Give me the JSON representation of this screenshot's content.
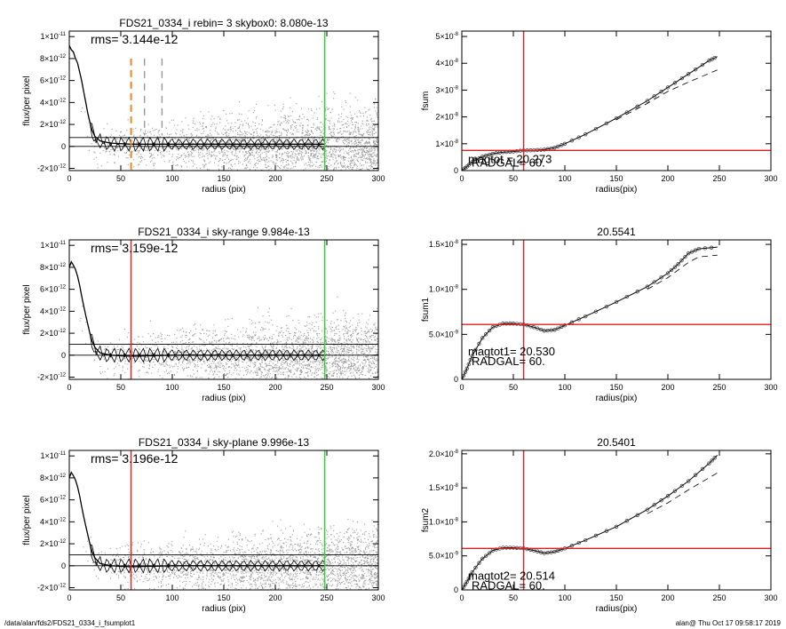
{
  "footer": {
    "path": "/data/alan/fds2/FDS21_0334_i_fsumplot1",
    "stamp": "alan@  Thu Oct 17 09:58:17 2019"
  },
  "colors": {
    "red": "#e02020",
    "green": "#22dd22",
    "orange": "#e08a2a",
    "scatter": "#9a9a9a"
  },
  "chart_data": [
    {
      "type": "scatter",
      "title": "FDS21_0334_i rebin= 3    skybox0:  8.080e-13",
      "xlabel": "radius (pix)",
      "ylabel": "flux/per pixel",
      "xlim": [
        0,
        300
      ],
      "ylim": [
        -2.2e-12,
        1.05e-11
      ],
      "xticks": [
        0,
        50,
        100,
        150,
        200,
        250,
        300
      ],
      "yticks": [
        {
          "v": -2e-12,
          "m": "-2",
          "e": "-12"
        },
        {
          "v": 0,
          "m": "0",
          "e": ""
        },
        {
          "v": 2e-12,
          "m": "2",
          "e": "-12"
        },
        {
          "v": 4e-12,
          "m": "4",
          "e": "-12"
        },
        {
          "v": 6e-12,
          "m": "6",
          "e": "-12"
        },
        {
          "v": 8e-12,
          "m": "8",
          "e": "-12"
        },
        {
          "v": 1e-11,
          "m": "1",
          "e": "-11"
        }
      ],
      "rms_label": "rms= 3.144e-12",
      "hlines": [
        0,
        8.08e-13
      ],
      "vlines": [
        {
          "x": 60,
          "color": "orange",
          "style": "dash-heavy"
        },
        {
          "x": 73,
          "color": "gray",
          "style": "dash"
        },
        {
          "x": 90,
          "color": "gray",
          "style": "dash"
        },
        {
          "x": 248,
          "color": "green",
          "style": "solid"
        }
      ],
      "profile": [
        [
          0,
          9.2e-12
        ],
        [
          2,
          8.8e-12
        ],
        [
          4,
          8.6e-12
        ],
        [
          6,
          8e-12
        ],
        [
          8,
          7.6e-12
        ],
        [
          10,
          6.8e-12
        ],
        [
          12,
          6e-12
        ],
        [
          14,
          5e-12
        ],
        [
          16,
          4e-12
        ],
        [
          18,
          3e-12
        ],
        [
          20,
          2.2e-12
        ],
        [
          22,
          1.5e-12
        ],
        [
          25,
          9e-13
        ],
        [
          30,
          5e-13
        ],
        [
          40,
          3e-13
        ],
        [
          60,
          2e-13
        ],
        [
          100,
          2e-13
        ],
        [
          150,
          2e-13
        ],
        [
          200,
          2e-13
        ],
        [
          248,
          2e-13
        ]
      ]
    },
    {
      "type": "line",
      "title": "",
      "xlabel": "radius(pix)",
      "ylabel": "fsum",
      "xlim": [
        0,
        300
      ],
      "ylim": [
        0,
        5.2e-08
      ],
      "xticks": [
        0,
        50,
        100,
        150,
        200,
        250,
        300
      ],
      "yticks": [
        {
          "v": 0,
          "m": "0",
          "e": ""
        },
        {
          "v": 1e-08,
          "m": "1×10",
          "e": "-8"
        },
        {
          "v": 2e-08,
          "m": "2×10",
          "e": "-8"
        },
        {
          "v": 3e-08,
          "m": "3×10",
          "e": "-8"
        },
        {
          "v": 4e-08,
          "m": "4×10",
          "e": "-8"
        },
        {
          "v": 5e-08,
          "m": "5×10",
          "e": "-8"
        }
      ],
      "vline": 60,
      "hline": 7.5e-09,
      "annotations": [
        "magtot =  20.273",
        "RADGAL=     60."
      ],
      "curve": [
        [
          0,
          0
        ],
        [
          5,
          1.5e-09
        ],
        [
          10,
          3.2e-09
        ],
        [
          20,
          5.2e-09
        ],
        [
          30,
          6.3e-09
        ],
        [
          40,
          6.9e-09
        ],
        [
          50,
          7.1e-09
        ],
        [
          60,
          7.5e-09
        ],
        [
          70,
          7.6e-09
        ],
        [
          80,
          7.8e-09
        ],
        [
          90,
          8.5e-09
        ],
        [
          100,
          1e-08
        ],
        [
          120,
          1.35e-08
        ],
        [
          150,
          1.95e-08
        ],
        [
          180,
          2.6e-08
        ],
        [
          200,
          3.1e-08
        ],
        [
          220,
          3.6e-08
        ],
        [
          240,
          4.1e-08
        ],
        [
          248,
          4.25e-08
        ]
      ],
      "dashed": [
        [
          150,
          1.9e-08
        ],
        [
          180,
          2.5e-08
        ],
        [
          200,
          2.95e-08
        ],
        [
          220,
          3.3e-08
        ],
        [
          248,
          3.75e-08
        ]
      ]
    },
    {
      "type": "scatter",
      "title": "FDS21_0334_i sky-range  9.984e-13",
      "xlabel": "radius (pix)",
      "ylabel": "flux/per pixel",
      "xlim": [
        0,
        300
      ],
      "ylim": [
        -2.2e-12,
        1.05e-11
      ],
      "xticks": [
        0,
        50,
        100,
        150,
        200,
        250,
        300
      ],
      "yticks": [
        {
          "v": -2e-12,
          "m": "-2",
          "e": "-12"
        },
        {
          "v": 0,
          "m": "0",
          "e": ""
        },
        {
          "v": 2e-12,
          "m": "2",
          "e": "-12"
        },
        {
          "v": 4e-12,
          "m": "4",
          "e": "-12"
        },
        {
          "v": 6e-12,
          "m": "6",
          "e": "-12"
        },
        {
          "v": 8e-12,
          "m": "8",
          "e": "-12"
        },
        {
          "v": 1e-11,
          "m": "1",
          "e": "-11"
        }
      ],
      "rms_label": "rms= 3.159e-12",
      "hlines": [
        0,
        9.984e-13
      ],
      "vlines": [
        {
          "x": 60,
          "color": "red",
          "style": "solid"
        },
        {
          "x": 248,
          "color": "green",
          "style": "solid"
        }
      ],
      "profile": [
        [
          0,
          8e-12
        ],
        [
          2,
          8.5e-12
        ],
        [
          4,
          8.2e-12
        ],
        [
          6,
          7.8e-12
        ],
        [
          8,
          7.2e-12
        ],
        [
          10,
          6.4e-12
        ],
        [
          12,
          5.4e-12
        ],
        [
          14,
          4.5e-12
        ],
        [
          16,
          3.6e-12
        ],
        [
          18,
          2.8e-12
        ],
        [
          20,
          2e-12
        ],
        [
          22,
          1.3e-12
        ],
        [
          25,
          7e-13
        ],
        [
          30,
          2e-13
        ],
        [
          40,
          0
        ],
        [
          60,
          -1e-13
        ],
        [
          100,
          0
        ],
        [
          150,
          0
        ],
        [
          200,
          0
        ],
        [
          248,
          0
        ]
      ]
    },
    {
      "type": "line",
      "title": "20.5541",
      "xlabel": "radius(pix)",
      "ylabel": "fsum1",
      "xlim": [
        0,
        300
      ],
      "ylim": [
        0,
        1.55e-08
      ],
      "xticks": [
        0,
        50,
        100,
        150,
        200,
        250,
        300
      ],
      "yticks": [
        {
          "v": 0,
          "m": "0",
          "e": ""
        },
        {
          "v": 5e-09,
          "m": "5.0×10",
          "e": "-9"
        },
        {
          "v": 1e-08,
          "m": "1.0×10",
          "e": "-8"
        },
        {
          "v": 1.5e-08,
          "m": "1.5×10",
          "e": "-8"
        }
      ],
      "vline": 60,
      "hline": 6.1e-09,
      "annotations": [
        "magtot1=  20.530",
        "RADGAL=     60."
      ],
      "curve": [
        [
          0,
          0
        ],
        [
          5,
          1.2e-09
        ],
        [
          10,
          2.6e-09
        ],
        [
          20,
          4.6e-09
        ],
        [
          30,
          5.8e-09
        ],
        [
          40,
          6.2e-09
        ],
        [
          50,
          6.2e-09
        ],
        [
          60,
          6.1e-09
        ],
        [
          70,
          5.8e-09
        ],
        [
          80,
          5.4e-09
        ],
        [
          90,
          5.5e-09
        ],
        [
          100,
          6e-09
        ],
        [
          120,
          7e-09
        ],
        [
          150,
          8.6e-09
        ],
        [
          180,
          1.03e-08
        ],
        [
          200,
          1.18e-08
        ],
        [
          210,
          1.28e-08
        ],
        [
          220,
          1.4e-08
        ],
        [
          230,
          1.45e-08
        ],
        [
          248,
          1.47e-08
        ]
      ],
      "dashed": [
        [
          180,
          1e-08
        ],
        [
          200,
          1.13e-08
        ],
        [
          220,
          1.3e-08
        ],
        [
          230,
          1.36e-08
        ],
        [
          248,
          1.38e-08
        ]
      ]
    },
    {
      "type": "scatter",
      "title": "FDS21_0334_i sky-plane  9.996e-13",
      "xlabel": "radius (pix)",
      "ylabel": "flux/per pixel",
      "xlim": [
        0,
        300
      ],
      "ylim": [
        -2.2e-12,
        1.05e-11
      ],
      "xticks": [
        0,
        50,
        100,
        150,
        200,
        250,
        300
      ],
      "yticks": [
        {
          "v": -2e-12,
          "m": "-2",
          "e": "-12"
        },
        {
          "v": 0,
          "m": "0",
          "e": ""
        },
        {
          "v": 2e-12,
          "m": "2",
          "e": "-12"
        },
        {
          "v": 4e-12,
          "m": "4",
          "e": "-12"
        },
        {
          "v": 6e-12,
          "m": "6",
          "e": "-12"
        },
        {
          "v": 8e-12,
          "m": "8",
          "e": "-12"
        },
        {
          "v": 1e-11,
          "m": "1",
          "e": "-11"
        }
      ],
      "rms_label": "rms= 3.196e-12",
      "hlines": [
        0,
        9.996e-13
      ],
      "vlines": [
        {
          "x": 60,
          "color": "red",
          "style": "solid"
        },
        {
          "x": 248,
          "color": "green",
          "style": "solid"
        }
      ],
      "profile": [
        [
          0,
          8e-12
        ],
        [
          2,
          8.5e-12
        ],
        [
          4,
          8.2e-12
        ],
        [
          6,
          7.8e-12
        ],
        [
          8,
          7.2e-12
        ],
        [
          10,
          6.4e-12
        ],
        [
          12,
          5.4e-12
        ],
        [
          14,
          4.5e-12
        ],
        [
          16,
          3.6e-12
        ],
        [
          18,
          2.8e-12
        ],
        [
          20,
          2e-12
        ],
        [
          22,
          1.3e-12
        ],
        [
          25,
          7e-13
        ],
        [
          30,
          2e-13
        ],
        [
          40,
          0
        ],
        [
          60,
          -1e-13
        ],
        [
          100,
          0
        ],
        [
          150,
          0
        ],
        [
          200,
          0
        ],
        [
          248,
          0
        ]
      ]
    },
    {
      "type": "line",
      "title": "20.5401",
      "xlabel": "radius(pix)",
      "ylabel": "fsum2",
      "xlim": [
        0,
        300
      ],
      "ylim": [
        0,
        2.05e-08
      ],
      "xticks": [
        0,
        50,
        100,
        150,
        200,
        250,
        300
      ],
      "yticks": [
        {
          "v": 0,
          "m": "0",
          "e": ""
        },
        {
          "v": 5e-09,
          "m": "5.0×10",
          "e": "-9"
        },
        {
          "v": 1e-08,
          "m": "1.0×10",
          "e": "-8"
        },
        {
          "v": 1.5e-08,
          "m": "1.5×10",
          "e": "-8"
        },
        {
          "v": 2e-08,
          "m": "2.0×10",
          "e": "-8"
        }
      ],
      "vline": 60,
      "hline": 6.1e-09,
      "annotations": [
        "magtot2=  20.514",
        "RADGAL=     60."
      ],
      "curve": [
        [
          0,
          0
        ],
        [
          5,
          1.2e-09
        ],
        [
          10,
          2.6e-09
        ],
        [
          20,
          4.6e-09
        ],
        [
          30,
          5.8e-09
        ],
        [
          40,
          6.2e-09
        ],
        [
          50,
          6.2e-09
        ],
        [
          60,
          6.1e-09
        ],
        [
          70,
          5.8e-09
        ],
        [
          80,
          5.4e-09
        ],
        [
          90,
          5.6e-09
        ],
        [
          100,
          6.1e-09
        ],
        [
          120,
          7.3e-09
        ],
        [
          150,
          9.3e-09
        ],
        [
          180,
          1.18e-08
        ],
        [
          200,
          1.38e-08
        ],
        [
          220,
          1.6e-08
        ],
        [
          240,
          1.86e-08
        ],
        [
          248,
          1.98e-08
        ]
      ],
      "dashed": [
        [
          180,
          1.12e-08
        ],
        [
          200,
          1.28e-08
        ],
        [
          220,
          1.47e-08
        ],
        [
          248,
          1.72e-08
        ]
      ]
    }
  ]
}
